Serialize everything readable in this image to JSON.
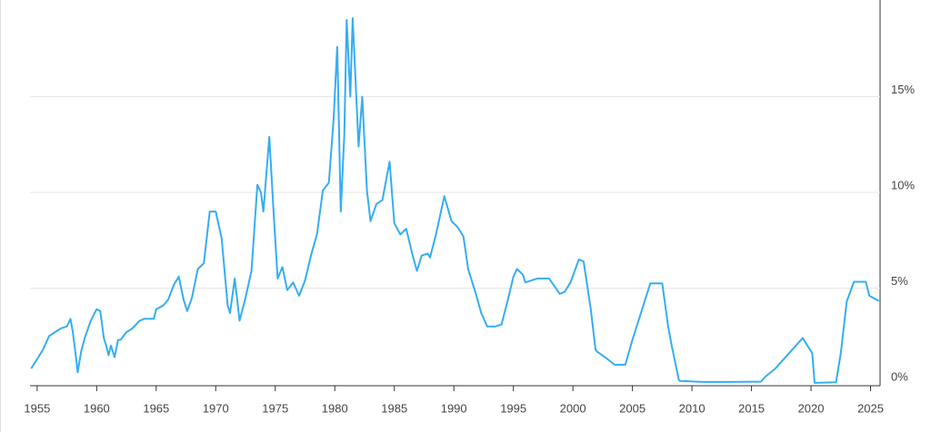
{
  "chart_data": {
    "type": "line",
    "x": [
      1954.5,
      1954.7,
      1955,
      1955.5,
      1956,
      1956.5,
      1957,
      1957.5,
      1957.8,
      1958.0,
      1958.3,
      1958.4,
      1958.7,
      1959,
      1959.5,
      1960,
      1960.3,
      1960.6,
      1960.8,
      1961,
      1961.2,
      1961.5,
      1961.8,
      1962,
      1962.5,
      1963,
      1963.6,
      1964,
      1964.8,
      1965,
      1965.6,
      1966,
      1966.5,
      1966.9,
      1967.3,
      1967.6,
      1968,
      1968.5,
      1969,
      1969.5,
      1970,
      1970.5,
      1971,
      1971.2,
      1971.6,
      1972,
      1972.5,
      1973,
      1973.5,
      1973.8,
      1974.0,
      1974.5,
      1974.9,
      1975.2,
      1975.6,
      1976,
      1976.5,
      1977,
      1977.5,
      1978,
      1978.5,
      1979,
      1979.5,
      1979.9,
      1980.2,
      1980.5,
      1980.8,
      1981.0,
      1981.3,
      1981.5,
      1981.8,
      1982.0,
      1982.3,
      1982.7,
      1983,
      1983.5,
      1984,
      1984.6,
      1985,
      1985.5,
      1986,
      1986.5,
      1986.9,
      1987.3,
      1987.8,
      1988,
      1988.5,
      1989.2,
      1989.8,
      1990.3,
      1990.8,
      1991.2,
      1991.8,
      1992.3,
      1992.8,
      1993.5,
      1994,
      1994.5,
      1995,
      1995.3,
      1995.8,
      1996,
      1997,
      1998,
      1998.9,
      1999.3,
      1999.8,
      2000.5,
      2000.9,
      2001.5,
      2001.9,
      2002,
      2002.9,
      2003.5,
      2004.4,
      2005,
      2006.5,
      2007.5,
      2008,
      2008.3,
      2008.9,
      2009,
      2011,
      2013,
      2015.8,
      2016.2,
      2017,
      2018,
      2019.3,
      2019.7,
      2020.1,
      2020.3,
      2022.1,
      2022.5,
      2023,
      2023.6,
      2024.6,
      2024.9,
      2025.7
    ],
    "values": [
      0.8,
      1.0,
      1.3,
      1.8,
      2.5,
      2.7,
      2.9,
      3.0,
      3.4,
      2.7,
      1.2,
      0.6,
      1.7,
      2.4,
      3.3,
      3.9,
      3.8,
      2.4,
      2.0,
      1.5,
      2.0,
      1.4,
      2.3,
      2.3,
      2.7,
      2.9,
      3.3,
      3.4,
      3.4,
      3.9,
      4.1,
      4.4,
      5.2,
      5.6,
      4.4,
      3.8,
      4.5,
      6.0,
      6.3,
      9.0,
      9.0,
      7.6,
      4.1,
      3.7,
      5.5,
      3.3,
      4.5,
      5.9,
      10.4,
      10.0,
      9.0,
      12.9,
      8.5,
      5.5,
      6.1,
      4.9,
      5.3,
      4.6,
      5.4,
      6.7,
      7.8,
      10.1,
      10.5,
      13.8,
      17.6,
      9.0,
      13.0,
      19.0,
      15.0,
      19.1,
      15.1,
      12.4,
      15.0,
      10.1,
      8.5,
      9.4,
      9.6,
      11.6,
      8.4,
      7.8,
      8.1,
      6.8,
      5.9,
      6.7,
      6.8,
      6.6,
      7.8,
      9.8,
      8.5,
      8.2,
      7.7,
      6.0,
      4.8,
      3.7,
      3.0,
      3.0,
      3.1,
      4.3,
      5.6,
      6.0,
      5.7,
      5.3,
      5.5,
      5.5,
      4.7,
      4.8,
      5.3,
      6.5,
      6.4,
      3.9,
      1.8,
      1.7,
      1.3,
      1.0,
      1.0,
      2.3,
      5.25,
      5.25,
      3.0,
      2.0,
      0.2,
      0.15,
      0.1,
      0.1,
      0.12,
      0.4,
      0.8,
      1.5,
      2.4,
      2.0,
      1.6,
      0.05,
      0.08,
      1.6,
      4.3,
      5.33,
      5.33,
      4.6,
      4.33
    ],
    "color": "#35adf2",
    "xlim": [
      1954.4,
      2025.8
    ],
    "xticks": [
      1955,
      1960,
      1965,
      1970,
      1975,
      1980,
      1985,
      1990,
      1995,
      2000,
      2005,
      2010,
      2015,
      2020,
      2025
    ],
    "ylim": [
      0,
      20
    ],
    "yticks": [
      {
        "value": 0,
        "label": "0%"
      },
      {
        "value": 5,
        "label": "5%"
      },
      {
        "value": 10,
        "label": "10%"
      },
      {
        "value": 15,
        "label": "15%"
      }
    ],
    "grid": true
  }
}
